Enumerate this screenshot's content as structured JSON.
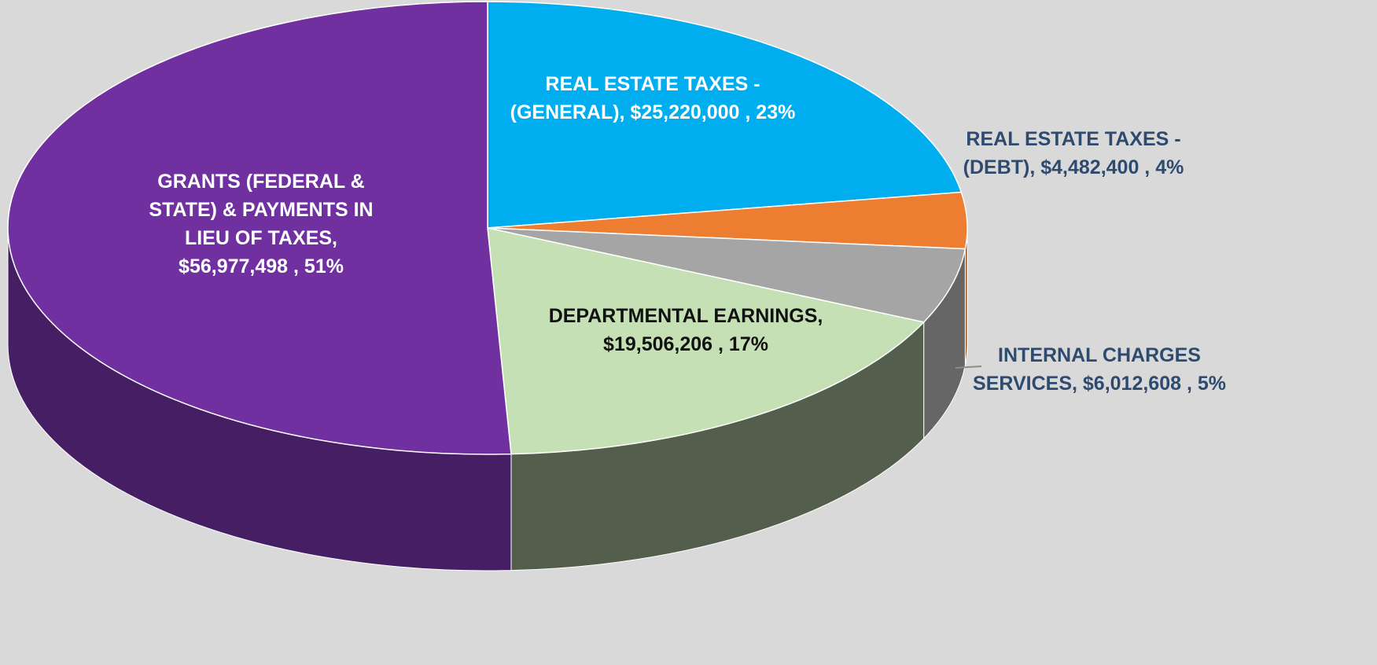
{
  "chart_data": {
    "type": "pie3d",
    "value_labels": [
      "REAL ESTATE TAXES - (GENERAL), $25,220,000 , 23%",
      "REAL ESTATE TAXES - (DEBT), $4,482,400 , 4%",
      "INTERNAL CHARGES SERVICES, $6,012,608 , 5%",
      "DEPARTMENTAL EARNINGS, $19,506,206 , 17%",
      "GRANTS (FEDERAL & STATE) & PAYMENTS IN LIEU OF TAXES, $56,977,498 , 51%"
    ],
    "values": [
      25220000,
      4482400,
      6012608,
      19506206,
      56977498
    ],
    "colors": [
      "#00aeef",
      "#ed7d31",
      "#a5a5a5",
      "#c5e0b4",
      "#7030a0"
    ]
  }
}
